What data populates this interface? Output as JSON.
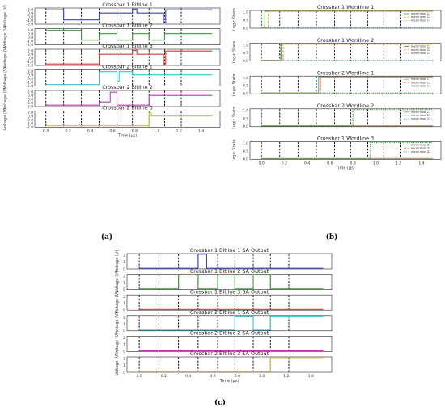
{
  "chart_data": [
    {
      "panel": "(a)",
      "type": "line",
      "xlabel": "Time (µs)",
      "xticks": [
        "0.0",
        "0.2",
        "0.4",
        "0.6",
        "0.8",
        "1.0",
        "1.2",
        "1.4"
      ],
      "xlim": [
        -0.1,
        1.57
      ],
      "ylabel": "Voltage (V)",
      "vlines": [
        0.0,
        0.16,
        0.32,
        0.48,
        0.64,
        0.78,
        0.93,
        1.07,
        1.22
      ],
      "subplots": [
        {
          "title": "Crossbar 1 Bitline 1",
          "color": "#3b43c8",
          "yticks": [
            "2.0",
            "0.9",
            "0.0",
            "-1.0",
            "-2.0"
          ],
          "ylim": [
            -2.2,
            2.3
          ],
          "points": [
            [
              0,
              1.8
            ],
            [
              0.16,
              1.8
            ],
            [
              0.16,
              -1.0
            ],
            [
              0.48,
              -1.0
            ],
            [
              0.48,
              0.9
            ],
            [
              0.78,
              0.9
            ],
            [
              0.78,
              2.0
            ],
            [
              0.82,
              2.0
            ],
            [
              0.82,
              0.9
            ],
            [
              1.06,
              0.9
            ],
            [
              1.06,
              -1.8
            ],
            [
              1.08,
              -1.8
            ],
            [
              1.08,
              1.8
            ],
            [
              1.5,
              1.8
            ]
          ]
        },
        {
          "title": "Crossbar 1 Bitline 2",
          "color": "#3f9a3f",
          "yticks": [
            "2.0",
            "0.9",
            "0.0",
            "-1.0",
            "-2.0"
          ],
          "ylim": [
            -2.2,
            2.3
          ],
          "points": [
            [
              0,
              1.8
            ],
            [
              0.32,
              1.8
            ],
            [
              0.32,
              -0.9
            ],
            [
              0.48,
              -0.9
            ],
            [
              0.48,
              0.9
            ],
            [
              0.64,
              0.9
            ],
            [
              0.64,
              -0.9
            ],
            [
              0.78,
              -0.9
            ],
            [
              0.78,
              0.9
            ],
            [
              0.93,
              0.9
            ],
            [
              0.93,
              -0.9
            ],
            [
              1.07,
              -0.9
            ],
            [
              1.07,
              0.9
            ],
            [
              1.5,
              0.9
            ]
          ]
        },
        {
          "title": "Crossbar 1 Bitline 3",
          "color": "#d23a3a",
          "yticks": [
            "2.0",
            "0.9",
            "0.0",
            "-1.0",
            "-2.0"
          ],
          "ylim": [
            -2.2,
            2.3
          ],
          "points": [
            [
              0,
              -1.8
            ],
            [
              0.48,
              -1.8
            ],
            [
              0.48,
              0.9
            ],
            [
              0.78,
              0.9
            ],
            [
              0.78,
              2.0
            ],
            [
              0.82,
              2.0
            ],
            [
              0.82,
              0.9
            ],
            [
              1.06,
              0.9
            ],
            [
              1.06,
              -1.8
            ],
            [
              1.08,
              -1.8
            ],
            [
              1.08,
              1.8
            ],
            [
              1.5,
              1.8
            ]
          ]
        },
        {
          "title": "Crossbar 2 Bitline 1",
          "color": "#3cc4cc",
          "yticks": [
            "2.0",
            "0.9",
            "0.0",
            "-1.0",
            "-2.0"
          ],
          "ylim": [
            -2.2,
            2.3
          ],
          "points": [
            [
              0,
              -1.8
            ],
            [
              0.48,
              -1.8
            ],
            [
              0.48,
              1.8
            ],
            [
              0.64,
              1.8
            ],
            [
              0.64,
              -0.9
            ],
            [
              0.66,
              -0.9
            ],
            [
              0.66,
              1.8
            ],
            [
              0.78,
              1.8
            ],
            [
              0.78,
              0.9
            ],
            [
              1.5,
              0.9
            ]
          ]
        },
        {
          "title": "Crossbar 2 Bitline 2",
          "color": "#b43cb4",
          "yticks": [
            "2.0",
            "0.9",
            "0.0",
            "-1.0",
            "-2.0"
          ],
          "ylim": [
            -2.2,
            2.3
          ],
          "points": [
            [
              0,
              -1.8
            ],
            [
              0.48,
              -1.8
            ],
            [
              0.48,
              -0.9
            ],
            [
              0.58,
              -0.9
            ],
            [
              0.58,
              1.8
            ],
            [
              0.64,
              1.8
            ],
            [
              0.64,
              -1.8
            ],
            [
              0.93,
              -1.8
            ],
            [
              0.93,
              0.9
            ],
            [
              1.5,
              0.9
            ]
          ]
        },
        {
          "title": "Crossbar 2 Bitline 3",
          "color": "#c9c43a",
          "yticks": [
            "2.0",
            "0.9",
            "0.0",
            "-1.0",
            "-2.0"
          ],
          "ylim": [
            -2.2,
            2.3
          ],
          "points": [
            [
              0,
              -1.8
            ],
            [
              0.93,
              -1.8
            ],
            [
              0.93,
              1.8
            ],
            [
              0.95,
              1.8
            ],
            [
              0.95,
              0.9
            ],
            [
              1.5,
              0.9
            ]
          ]
        }
      ]
    },
    {
      "panel": "(b)",
      "type": "line",
      "xlabel": "Time (µs)",
      "xticks": [
        "0.0",
        "0.2",
        "0.4",
        "0.6",
        "0.8",
        "1.0",
        "1.2",
        "1.4"
      ],
      "xlim": [
        -0.1,
        1.57
      ],
      "ylabel": "Logic State",
      "yticks": [
        "1.0",
        "0.5",
        "0.0"
      ],
      "ylim": [
        -0.05,
        1.05
      ],
      "vlines": [
        0.0,
        0.16,
        0.32,
        0.48,
        0.64,
        0.78,
        0.93,
        1.07,
        1.22
      ],
      "subplots": [
        {
          "title": "Crossbar 1 Wordline 1",
          "legend": [
            "memristor 11",
            "memristor 12",
            "memristor 13"
          ],
          "series": [
            {
              "color": "#2f9e2f",
              "points": [
                [
                  0,
                  0
                ],
                [
                  0.03,
                  0
                ],
                [
                  0.03,
                  1
                ],
                [
                  1.5,
                  1
                ]
              ]
            },
            {
              "color": "#e8913a",
              "points": [
                [
                  0,
                  0
                ],
                [
                  0.06,
                  0
                ],
                [
                  0.06,
                  1
                ],
                [
                  1.5,
                  1
                ]
              ]
            },
            {
              "color": "#5aa0cf",
              "points": [
                [
                  0,
                  0
                ],
                [
                  1.5,
                  0
                ]
              ]
            }
          ]
        },
        {
          "title": "Crossbar 1 Wordline 2",
          "legend": [
            "memristor 21",
            "memristor 22",
            "memristor 23"
          ],
          "series": [
            {
              "color": "#2f9e2f",
              "points": [
                [
                  0,
                  0
                ],
                [
                  0.17,
                  0
                ],
                [
                  0.17,
                  1
                ],
                [
                  1.5,
                  1
                ]
              ]
            },
            {
              "color": "#e8913a",
              "points": [
                [
                  0,
                  0
                ],
                [
                  0.19,
                  0
                ],
                [
                  0.19,
                  1
                ],
                [
                  1.5,
                  1
                ]
              ]
            },
            {
              "color": "#5aa0cf",
              "points": [
                [
                  0,
                  0
                ],
                [
                  1.5,
                  0
                ]
              ]
            }
          ]
        },
        {
          "title": "Crossbar 2 Wordline 1",
          "legend": [
            "memristor 11",
            "memristor 12",
            "memristor 13"
          ],
          "series": [
            {
              "color": "#5aa0cf",
              "points": [
                [
                  0,
                  0
                ],
                [
                  0.5,
                  0
                ],
                [
                  0.5,
                  1
                ],
                [
                  1.5,
                  1
                ]
              ]
            },
            {
              "color": "#e8913a",
              "points": [
                [
                  0,
                  0
                ],
                [
                  0.52,
                  0
                ],
                [
                  0.52,
                  1
                ],
                [
                  1.5,
                  1
                ]
              ]
            },
            {
              "color": "#2f9e2f",
              "points": [
                [
                  0,
                  0
                ],
                [
                  1.5,
                  0
                ]
              ]
            }
          ]
        },
        {
          "title": "Crossbar 2 Wordline 2",
          "legend": [
            "memristor 21",
            "memristor 22",
            "memristor 23"
          ],
          "series": [
            {
              "color": "#5aa0cf",
              "points": [
                [
                  0,
                  0
                ],
                [
                  1.5,
                  0
                ]
              ]
            },
            {
              "color": "#e8913a",
              "points": [
                [
                  0,
                  0
                ],
                [
                  1.5,
                  0
                ]
              ]
            },
            {
              "color": "#2f9e2f",
              "points": [
                [
                  0,
                  0
                ],
                [
                  0.8,
                  0
                ],
                [
                  0.8,
                  1
                ],
                [
                  1.5,
                  1
                ]
              ]
            }
          ]
        },
        {
          "title": "Crossbar 1 Wordline 3",
          "legend": [
            "memristor 31",
            "memristor 32",
            "memristor 33"
          ],
          "series": [
            {
              "color": "#5aa0cf",
              "points": [
                [
                  0,
                  0
                ],
                [
                  1.5,
                  0
                ]
              ]
            },
            {
              "color": "#e8913a",
              "points": [
                [
                  0,
                  0
                ],
                [
                  1.5,
                  0
                ]
              ]
            },
            {
              "color": "#2f9e2f",
              "points": [
                [
                  0,
                  0
                ],
                [
                  0.95,
                  0
                ],
                [
                  0.95,
                  1
                ],
                [
                  1.5,
                  1
                ]
              ]
            }
          ]
        }
      ]
    },
    {
      "panel": "(c)",
      "type": "line",
      "xlabel": "Time (µs)",
      "xticks": [
        "0.0",
        "0.2",
        "0.4",
        "0.6",
        "0.8",
        "1.0",
        "1.2",
        "1.4"
      ],
      "xlim": [
        -0.1,
        1.57
      ],
      "ylabel": "Voltage (V)",
      "yticks": [
        "2",
        "1",
        "0"
      ],
      "ylim": [
        -0.1,
        2.1
      ],
      "vlines": [
        0.0,
        0.16,
        0.32,
        0.48,
        0.64,
        0.78,
        0.93,
        1.07,
        1.22
      ],
      "subplots": [
        {
          "title": "Crossbar 1 Bitline 1 SA Output",
          "color": "#3b43c8",
          "points": [
            [
              0,
              0
            ],
            [
              0.48,
              0
            ],
            [
              0.48,
              2
            ],
            [
              0.55,
              2
            ],
            [
              0.55,
              0
            ],
            [
              1.5,
              0
            ]
          ]
        },
        {
          "title": "Crossbar 1 Bitline 2 SA Output",
          "color": "#3f9a3f",
          "points": [
            [
              0,
              0
            ],
            [
              0.32,
              0
            ],
            [
              0.32,
              2
            ],
            [
              0.48,
              2
            ],
            [
              0.48,
              0
            ],
            [
              0.64,
              0
            ],
            [
              0.64,
              2
            ],
            [
              0.78,
              2
            ],
            [
              0.78,
              0
            ],
            [
              0.93,
              0
            ],
            [
              0.93,
              2
            ],
            [
              1.07,
              2
            ],
            [
              1.07,
              0
            ],
            [
              1.5,
              0
            ]
          ]
        },
        {
          "title": "Crossbar 1 Bitline 3 SA Output",
          "color": "#d23a3a",
          "points": [
            [
              0,
              0
            ],
            [
              1.5,
              0
            ]
          ]
        },
        {
          "title": "Crossbar 2 Bitline 1 SA Output",
          "color": "#3cc4cc",
          "points": [
            [
              0,
              0
            ],
            [
              0.78,
              0
            ],
            [
              0.78,
              2
            ],
            [
              0.93,
              2
            ],
            [
              0.93,
              0
            ],
            [
              1.07,
              0
            ],
            [
              1.07,
              2
            ],
            [
              1.5,
              2
            ]
          ]
        },
        {
          "title": "Crossbar 2 Bitline 2 SA Output",
          "color": "#b43cb4",
          "points": [
            [
              0,
              0
            ],
            [
              1.5,
              0
            ]
          ]
        },
        {
          "title": "Crossbar 2 Bitline 3 SA Output",
          "color": "#c9c43a",
          "points": [
            [
              0,
              0
            ],
            [
              1.07,
              0
            ],
            [
              1.07,
              2
            ],
            [
              1.5,
              2
            ]
          ]
        }
      ]
    }
  ]
}
